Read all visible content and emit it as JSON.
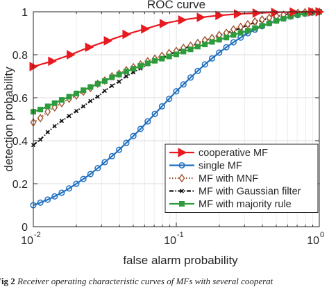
{
  "chart_data": {
    "type": "line",
    "title": "ROC curve",
    "xlabel": "false alarm probability",
    "ylabel": "detection probability",
    "xscale": "log",
    "xlim": [
      0.01,
      1
    ],
    "ylim": [
      0,
      1
    ],
    "x_ticks": [
      {
        "value": 0.01,
        "base": "10",
        "exp": "-2"
      },
      {
        "value": 0.1,
        "base": "10",
        "exp": "-1"
      },
      {
        "value": 1,
        "base": "10",
        "exp": "0"
      }
    ],
    "y_ticks": [
      "0",
      "0.2",
      "0.4",
      "0.6",
      "0.8",
      "1"
    ],
    "grid": true,
    "legend_position": "bottom-right",
    "series": [
      {
        "name": "cooperative MF",
        "color": "#e8191f",
        "line": "solid",
        "marker": "triangle-right",
        "x": [
          0.01,
          0.0135,
          0.0182,
          0.0245,
          0.0331,
          0.0447,
          0.0603,
          0.0813,
          0.1096,
          0.1479,
          0.1995,
          0.2691,
          0.3631,
          0.4898,
          0.6607,
          0.8913,
          1.0
        ],
        "y": [
          0.745,
          0.77,
          0.8,
          0.835,
          0.865,
          0.895,
          0.92,
          0.945,
          0.962,
          0.974,
          0.983,
          0.99,
          0.994,
          0.997,
          0.999,
          1.0,
          1.0
        ]
      },
      {
        "name": "single MF",
        "color": "#1f6fc0",
        "line": "solid",
        "marker": "circle",
        "x": [
          0.01,
          0.0112,
          0.0126,
          0.0141,
          0.0158,
          0.0178,
          0.02,
          0.0224,
          0.0251,
          0.0282,
          0.0316,
          0.0355,
          0.0398,
          0.0447,
          0.0501,
          0.0562,
          0.0631,
          0.0708,
          0.0794,
          0.0891,
          0.1,
          0.1122,
          0.1259,
          0.1413,
          0.1585,
          0.1778,
          0.1995,
          0.2239,
          0.2512,
          0.2818,
          0.3162,
          0.3548,
          0.3981,
          0.4467,
          0.5012,
          0.5623,
          0.631,
          0.7079,
          0.7943,
          0.8913,
          1.0
        ],
        "y": [
          0.1,
          0.112,
          0.126,
          0.141,
          0.158,
          0.178,
          0.2,
          0.222,
          0.245,
          0.272,
          0.3,
          0.328,
          0.358,
          0.39,
          0.422,
          0.455,
          0.49,
          0.525,
          0.56,
          0.595,
          0.63,
          0.662,
          0.694,
          0.725,
          0.755,
          0.783,
          0.81,
          0.835,
          0.858,
          0.88,
          0.9,
          0.917,
          0.933,
          0.947,
          0.959,
          0.969,
          0.978,
          0.985,
          0.991,
          0.996,
          1.0
        ]
      },
      {
        "name": "MF with MNF",
        "color": "#a0522d",
        "line": "dotted",
        "marker": "diamond",
        "x": [
          0.01,
          0.0112,
          0.0126,
          0.0141,
          0.0158,
          0.0178,
          0.02,
          0.0224,
          0.0251,
          0.0282,
          0.0316,
          0.0355,
          0.0398,
          0.0447,
          0.0501,
          0.0562,
          0.0631,
          0.0708,
          0.0794,
          0.0891,
          0.1,
          0.1122,
          0.1259,
          0.1413,
          0.1585,
          0.1778,
          0.1995,
          0.2239,
          0.2512,
          0.2818,
          0.3162,
          0.3548,
          0.3981,
          0.4467,
          0.5012,
          0.5623,
          0.631,
          0.7079,
          0.7943,
          0.8913,
          1.0
        ],
        "y": [
          0.485,
          0.505,
          0.535,
          0.555,
          0.575,
          0.595,
          0.61,
          0.628,
          0.645,
          0.665,
          0.68,
          0.7,
          0.712,
          0.728,
          0.742,
          0.755,
          0.77,
          0.782,
          0.795,
          0.808,
          0.818,
          0.832,
          0.842,
          0.855,
          0.868,
          0.878,
          0.892,
          0.902,
          0.918,
          0.93,
          0.942,
          0.955,
          0.964,
          0.972,
          0.98,
          0.986,
          0.991,
          0.995,
          0.998,
          1.0,
          1.0
        ]
      },
      {
        "name": "MF with Gaussian filter",
        "color": "#111111",
        "line": "dashdot",
        "marker": "cross",
        "x": [
          0.01,
          0.0112,
          0.0126,
          0.0141,
          0.0158,
          0.0178,
          0.02,
          0.0224,
          0.0251,
          0.0282,
          0.0316,
          0.0355,
          0.0398,
          0.0447,
          0.0501,
          0.0562,
          0.0631,
          0.0708,
          0.0794,
          0.0891,
          0.1,
          0.1122,
          0.1259,
          0.1413,
          0.1585,
          0.1778,
          0.1995,
          0.2239,
          0.2512,
          0.2818,
          0.3162,
          0.3548,
          0.3981,
          0.4467,
          0.5012,
          0.5623,
          0.631,
          0.7079,
          0.7943,
          0.8913,
          1.0
        ],
        "y": [
          0.38,
          0.405,
          0.44,
          0.468,
          0.492,
          0.515,
          0.538,
          0.56,
          0.585,
          0.605,
          0.632,
          0.656,
          0.675,
          0.7,
          0.718,
          0.736,
          0.755,
          0.77,
          0.786,
          0.8,
          0.815,
          0.828,
          0.84,
          0.852,
          0.866,
          0.876,
          0.89,
          0.9,
          0.912,
          0.925,
          0.938,
          0.95,
          0.96,
          0.97,
          0.978,
          0.985,
          0.991,
          0.995,
          0.998,
          1.0,
          1.0
        ]
      },
      {
        "name": "MF with majority rule",
        "color": "#2e9b3c",
        "line": "solid",
        "marker": "square",
        "x": [
          0.01,
          0.0112,
          0.0126,
          0.0141,
          0.0158,
          0.0178,
          0.02,
          0.0224,
          0.0251,
          0.0282,
          0.0316,
          0.0355,
          0.0398,
          0.0447,
          0.0501,
          0.0562,
          0.0631,
          0.0708,
          0.0794,
          0.0891,
          0.1,
          0.1122,
          0.1259,
          0.1413,
          0.1585,
          0.1778,
          0.1995,
          0.2239,
          0.2512,
          0.2818,
          0.3162,
          0.3548,
          0.3981,
          0.4467,
          0.5012,
          0.5623,
          0.631,
          0.7079,
          0.7943,
          0.8913,
          1.0
        ],
        "y": [
          0.535,
          0.545,
          0.56,
          0.575,
          0.59,
          0.605,
          0.62,
          0.635,
          0.65,
          0.665,
          0.678,
          0.695,
          0.708,
          0.722,
          0.735,
          0.748,
          0.76,
          0.772,
          0.782,
          0.792,
          0.802,
          0.815,
          0.825,
          0.838,
          0.848,
          0.86,
          0.87,
          0.88,
          0.892,
          0.902,
          0.912,
          0.924,
          0.935,
          0.946,
          0.958,
          0.968,
          0.978,
          0.986,
          0.992,
          0.997,
          1.0
        ]
      }
    ]
  },
  "caption": {
    "fig_label": "Fig 2",
    "text": "Receiver operating characteristic curves of MFs with several cooperat"
  }
}
